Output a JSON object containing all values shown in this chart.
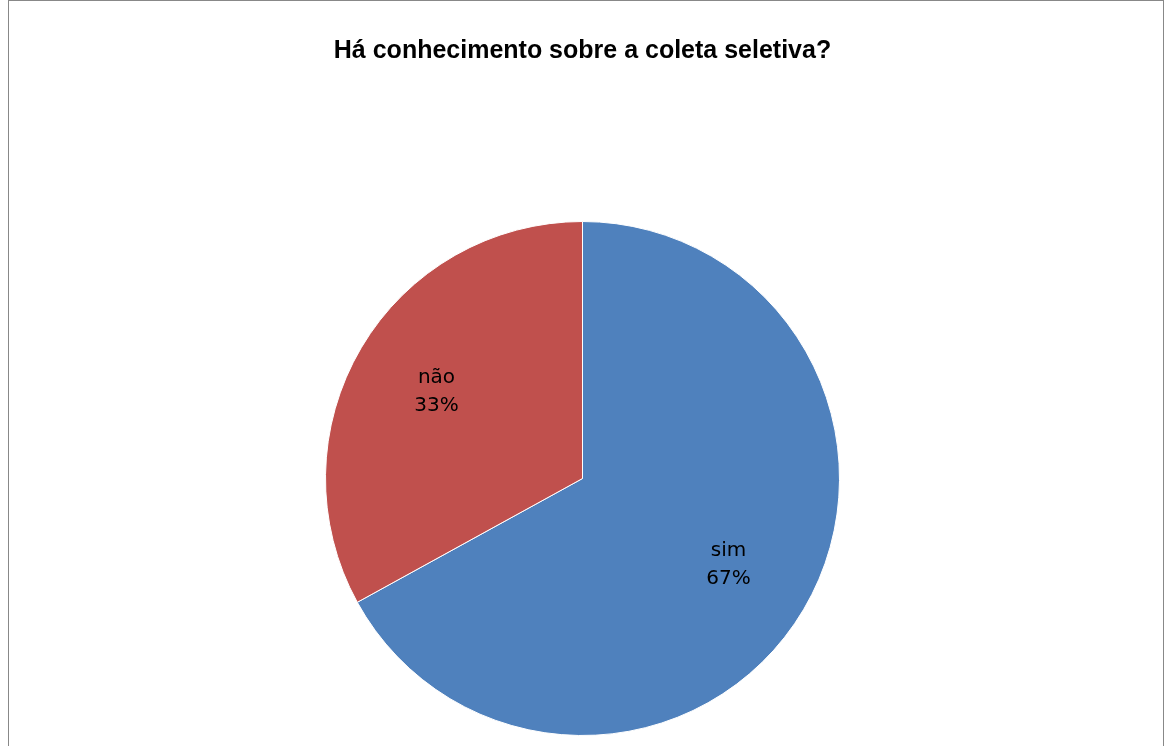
{
  "chart_data": {
    "type": "pie",
    "title": "Há conhecimento sobre a coleta seletiva?",
    "categories": [
      "sim",
      "não"
    ],
    "values": [
      67,
      33
    ],
    "value_labels": [
      "67%",
      "33%"
    ],
    "colors": [
      "#4f81bd",
      "#c0504d"
    ],
    "legend": false
  }
}
